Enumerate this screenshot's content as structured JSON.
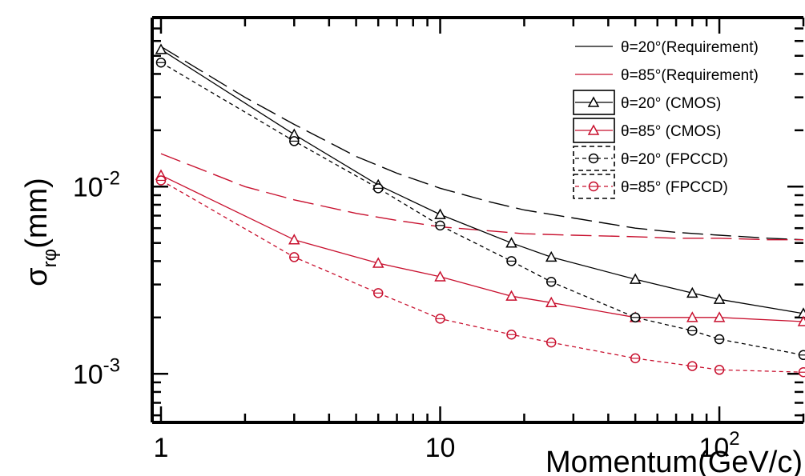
{
  "chart_data": {
    "type": "line",
    "xscale": "log",
    "yscale": "log",
    "xlim": [
      0.93,
      200
    ],
    "ylim": [
      0.00055,
      0.08
    ],
    "xlabel": "Momentum(GeV/c)",
    "ylabel_main": "σ",
    "ylabel_sub": "rφ",
    "ylabel_unit": "(mm)",
    "x_ticks": [
      {
        "value": 1,
        "base": "1",
        "exp": ""
      },
      {
        "value": 10,
        "base": "10",
        "exp": ""
      },
      {
        "value": 100,
        "base": "10",
        "exp": "2"
      }
    ],
    "y_ticks": [
      {
        "value": 0.001,
        "base": "10",
        "exp": "-3"
      },
      {
        "value": 0.01,
        "base": "10",
        "exp": "-2"
      }
    ],
    "grid": false,
    "legend_position": "top-right",
    "series": [
      {
        "name": "θ=20°(Requirement)",
        "color": "#000000",
        "style": "longdash",
        "marker": "none",
        "x": [
          1,
          2,
          3,
          5,
          7,
          10,
          15,
          20,
          30,
          50,
          70,
          100,
          150,
          200
        ],
        "y": [
          0.056,
          0.03,
          0.0215,
          0.0145,
          0.0118,
          0.0098,
          0.0083,
          0.0075,
          0.0068,
          0.006,
          0.0057,
          0.0055,
          0.0053,
          0.0052
        ]
      },
      {
        "name": "θ=85°(Requirement)",
        "color": "#c8102e",
        "style": "longdash",
        "marker": "none",
        "x": [
          1,
          2,
          3,
          5,
          7,
          10,
          15,
          20,
          30,
          50,
          70,
          100,
          150,
          200
        ],
        "y": [
          0.015,
          0.01,
          0.0085,
          0.0072,
          0.0066,
          0.0061,
          0.0058,
          0.0056,
          0.0055,
          0.0054,
          0.0053,
          0.0053,
          0.0052,
          0.0052
        ]
      },
      {
        "name": "θ=20° (CMOS)",
        "color": "#000000",
        "style": "solid",
        "marker": "triangle",
        "x": [
          1,
          3,
          6,
          10,
          18,
          25,
          50,
          80,
          100,
          200
        ],
        "y": [
          0.054,
          0.019,
          0.0102,
          0.0071,
          0.005,
          0.0042,
          0.0032,
          0.0027,
          0.0025,
          0.0021
        ]
      },
      {
        "name": "θ=85° (CMOS)",
        "color": "#c8102e",
        "style": "solid",
        "marker": "triangle",
        "x": [
          1,
          3,
          6,
          10,
          18,
          25,
          50,
          80,
          100,
          200
        ],
        "y": [
          0.0115,
          0.0052,
          0.0039,
          0.0033,
          0.0026,
          0.0024,
          0.002,
          0.002,
          0.002,
          0.0019
        ]
      },
      {
        "name": "θ=20° (FPCCD)",
        "color": "#000000",
        "style": "dash",
        "marker": "circle",
        "x": [
          1,
          3,
          6,
          10,
          18,
          25,
          50,
          80,
          100,
          200
        ],
        "y": [
          0.046,
          0.0175,
          0.0098,
          0.0062,
          0.004,
          0.0031,
          0.002,
          0.0017,
          0.00153,
          0.00126
        ]
      },
      {
        "name": "θ=85° (FPCCD)",
        "color": "#c8102e",
        "style": "dash",
        "marker": "circle",
        "x": [
          1,
          3,
          6,
          10,
          18,
          25,
          50,
          80,
          100,
          200
        ],
        "y": [
          0.0108,
          0.0042,
          0.0027,
          0.00197,
          0.00162,
          0.00147,
          0.00121,
          0.0011,
          0.00105,
          0.00102
        ]
      }
    ]
  }
}
